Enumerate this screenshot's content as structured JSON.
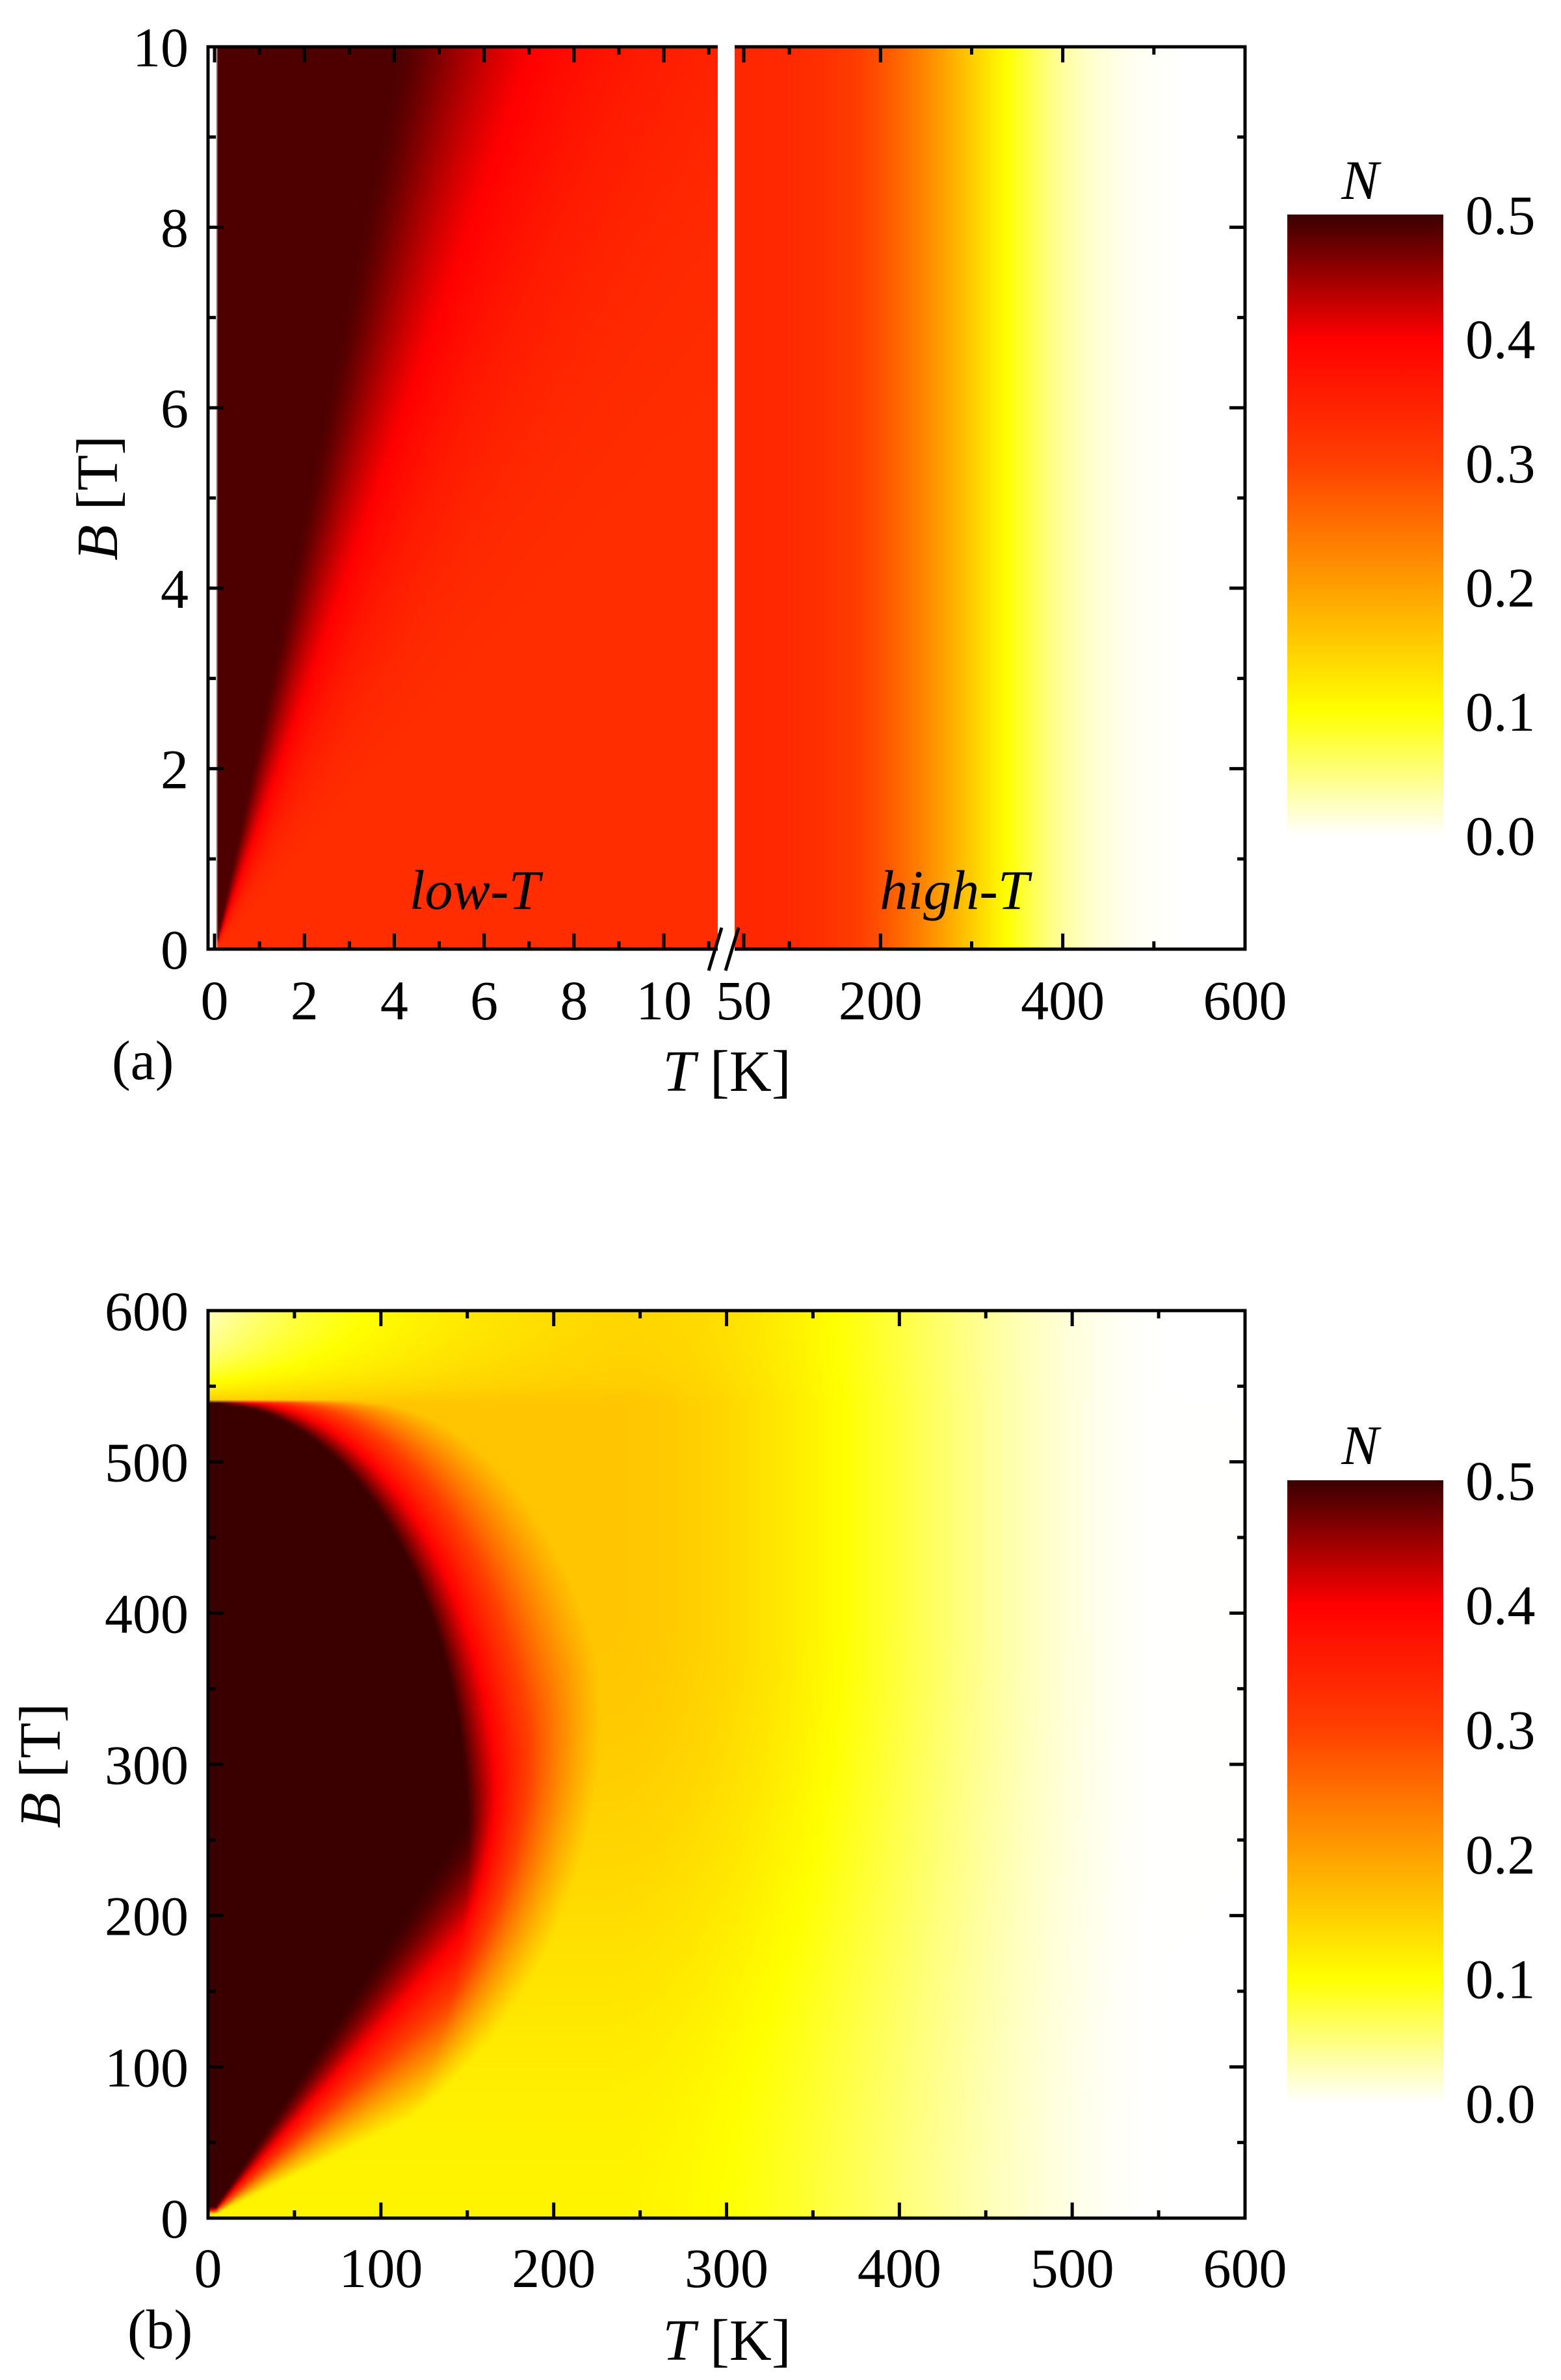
{
  "chart_data": [
    {
      "type": "heatmap",
      "panel_tag": "(a)",
      "xlabel": {
        "symbol": "T",
        "unit": " [K]"
      },
      "ylabel": {
        "symbol": "B",
        "unit": " [T]"
      },
      "broken_x_axis": true,
      "x_low": {
        "range": [
          0,
          11.2
        ],
        "ticks": [
          0,
          2,
          4,
          6,
          8,
          10
        ],
        "tick_labels": [
          "0",
          "2",
          "4",
          "6",
          "8",
          "10"
        ],
        "region_label": {
          "italic": "low",
          "sep": "-",
          "sym": "T"
        }
      },
      "x_high": {
        "range": [
          0,
          600
        ],
        "ticks": [
          50,
          200,
          400,
          600
        ],
        "tick_labels": [
          "50",
          "200",
          "400",
          "600"
        ],
        "region_label": {
          "italic": "high",
          "sep": "-",
          "sym": "T"
        }
      },
      "ylim": [
        0,
        10
      ],
      "yticks": [
        0,
        2,
        4,
        6,
        8,
        10
      ],
      "ytick_labels": [
        "0",
        "2",
        "4",
        "6",
        "8",
        "10"
      ],
      "colorbar": {
        "title": "N",
        "range": [
          0,
          0.5
        ],
        "ticks": [
          0.0,
          0.1,
          0.2,
          0.3,
          0.4,
          0.5
        ],
        "tick_labels": [
          "0.0",
          "0.1",
          "0.2",
          "0.3",
          "0.4",
          "0.5"
        ],
        "colors": [
          "#ffffff",
          "#ffff00",
          "#ff8000",
          "#ff2a00",
          "#ff0000",
          "#3a0000"
        ]
      },
      "field_description": "N approx 0.45-0.5 near T=0 for B>0, decreasing with T; ~0.35 across low-T region; high-T region decreases from ~0.35 at 50 K to ~0 by ~520 K"
    },
    {
      "type": "heatmap",
      "panel_tag": "(b)",
      "xlabel": {
        "symbol": "T",
        "unit": " [K]"
      },
      "ylabel": {
        "symbol": "B",
        "unit": " [T]"
      },
      "xlim": [
        0,
        600
      ],
      "xticks": [
        0,
        100,
        200,
        300,
        400,
        500,
        600
      ],
      "xtick_labels": [
        "0",
        "100",
        "200",
        "300",
        "400",
        "500",
        "600"
      ],
      "ylim": [
        0,
        600
      ],
      "yticks": [
        0,
        100,
        200,
        300,
        400,
        500,
        600
      ],
      "ytick_labels": [
        "0",
        "100",
        "200",
        "300",
        "400",
        "500",
        "600"
      ],
      "colorbar": {
        "title": "N",
        "range": [
          0,
          0.5
        ],
        "ticks": [
          0.0,
          0.1,
          0.2,
          0.3,
          0.4,
          0.5
        ],
        "tick_labels": [
          "0.0",
          "0.1",
          "0.2",
          "0.3",
          "0.4",
          "0.5"
        ],
        "colors": [
          "#ffffff",
          "#ffff00",
          "#ff8000",
          "#ff2a00",
          "#ff0000",
          "#3a0000"
        ]
      },
      "critical_field_B": 540,
      "field_description": "N approx 0.5 near T=0 for 0<B<540 T (peaking around B~250 T, extending to T~150 K), decreasing with T to ~0.1 near 350 K and ~0 by ~550 K; near zero above B=540 T at low T"
    }
  ]
}
